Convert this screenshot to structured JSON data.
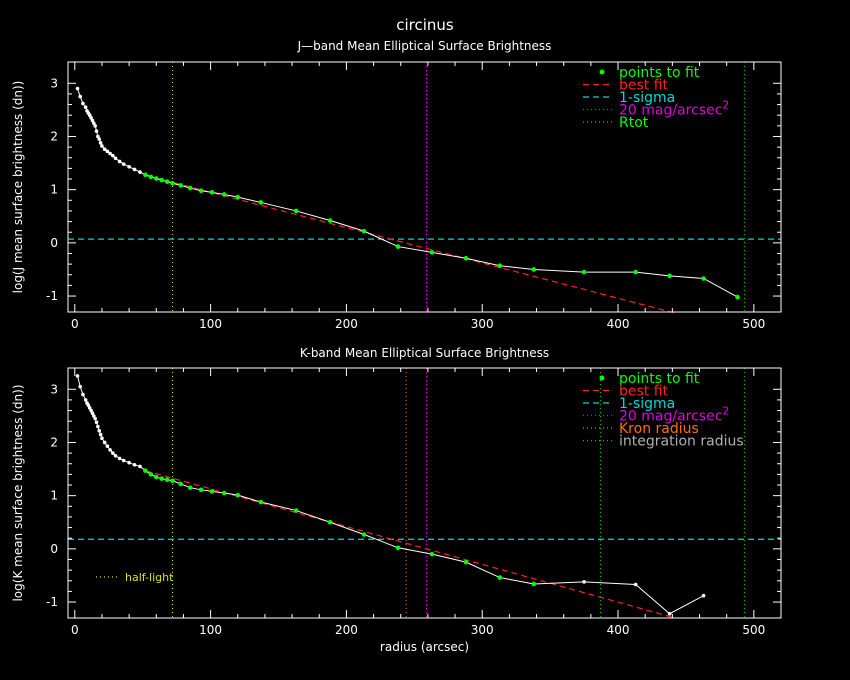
{
  "page": {
    "title": "circinus",
    "background": "#000000"
  },
  "colors": {
    "axes": "#ffffff",
    "points": "#00ff00",
    "profile": "#ffffff",
    "fit": "#ff2020",
    "sigma": "#00d8d8",
    "mag20": "#e000e0",
    "rtot": "#00d000",
    "halflight": "#e0e000",
    "kron": "#ff7000",
    "integration": "#b0b0b0"
  },
  "chart_data": [
    {
      "type": "line",
      "title": "J—band Mean Elliptical Surface Brightness",
      "xlabel": "",
      "ylabel": "log(J mean surface brightness (dn))",
      "xlim": [
        -5,
        520
      ],
      "ylim": [
        -1.3,
        3.4
      ],
      "x_ticks": [
        0,
        100,
        200,
        300,
        400,
        500
      ],
      "y_ticks": [
        -1,
        0,
        1,
        2,
        3
      ],
      "profile": {
        "x": [
          2,
          4,
          6,
          8,
          9,
          10,
          11,
          12,
          13,
          14,
          15,
          16,
          17,
          18,
          19,
          20,
          22,
          24,
          26,
          28,
          30,
          33,
          36,
          40,
          44,
          48,
          52,
          56,
          60,
          64,
          68,
          72,
          78,
          85,
          93,
          101,
          110,
          120,
          137,
          163,
          188,
          213,
          238,
          263,
          288,
          313,
          338,
          375,
          413,
          438,
          463,
          488
        ],
        "y": [
          2.9,
          2.75,
          2.62,
          2.55,
          2.48,
          2.44,
          2.4,
          2.35,
          2.3,
          2.25,
          2.2,
          2.1,
          2.0,
          1.95,
          1.88,
          1.82,
          1.76,
          1.72,
          1.68,
          1.64,
          1.59,
          1.53,
          1.48,
          1.43,
          1.38,
          1.33,
          1.28,
          1.24,
          1.21,
          1.18,
          1.15,
          1.12,
          1.08,
          1.03,
          0.98,
          0.95,
          0.91,
          0.86,
          0.76,
          0.6,
          0.42,
          0.22,
          -0.07,
          -0.18,
          -0.29,
          -0.43,
          -0.5,
          -0.55,
          -0.55,
          -0.62,
          -0.67,
          -1.02
        ]
      },
      "fit_points": {
        "x": [
          52,
          56,
          60,
          64,
          68,
          72,
          78,
          85,
          93,
          101,
          110,
          120,
          137,
          163,
          188,
          213,
          238,
          263,
          288,
          313,
          338,
          375,
          413,
          438,
          463,
          488
        ],
        "y": [
          1.28,
          1.24,
          1.21,
          1.18,
          1.15,
          1.12,
          1.08,
          1.03,
          0.98,
          0.95,
          0.91,
          0.86,
          0.76,
          0.6,
          0.42,
          0.22,
          -0.07,
          -0.18,
          -0.29,
          -0.43,
          -0.5,
          -0.55,
          -0.55,
          -0.62,
          -0.67,
          -1.02
        ]
      },
      "best_fit": {
        "x": [
          52,
          442
        ],
        "y": [
          1.27,
          -1.32
        ]
      },
      "sigma_level": 0.07,
      "vlines": [
        {
          "x": 72,
          "color_key": "halflight"
        },
        {
          "x": 259,
          "color_key": "mag20"
        },
        {
          "x": 493,
          "color_key": "rtot"
        }
      ],
      "legend": [
        {
          "label": "points to fit",
          "style": "dot",
          "color_key": "points",
          "label_color_key": "points"
        },
        {
          "label": "best fit",
          "style": "dash",
          "color_key": "fit",
          "label_color_key": "fit"
        },
        {
          "label": "1-sigma",
          "style": "dash",
          "color_key": "sigma",
          "label_color_key": "sigma"
        },
        {
          "label": "20 mag/arcsec",
          "sup": "2",
          "style": "dot-line",
          "color_key": "mag20",
          "label_color_key": "mag20"
        },
        {
          "label": "Rtot",
          "style": "dot-line",
          "color_key": "rtot",
          "label_color_key": "points"
        }
      ],
      "annotation": ""
    },
    {
      "type": "line",
      "title": "K-band Mean Elliptical Surface Brightness",
      "xlabel": "radius (arcsec)",
      "ylabel": "log(K mean surface brightness (dn))",
      "xlim": [
        -5,
        520
      ],
      "ylim": [
        -1.3,
        3.4
      ],
      "x_ticks": [
        0,
        100,
        200,
        300,
        400,
        500
      ],
      "y_ticks": [
        -1,
        0,
        1,
        2,
        3
      ],
      "profile": {
        "x": [
          2,
          4,
          6,
          8,
          9,
          10,
          11,
          12,
          13,
          14,
          15,
          16,
          17,
          18,
          19,
          20,
          22,
          24,
          26,
          28,
          30,
          33,
          36,
          40,
          44,
          48,
          52,
          56,
          60,
          64,
          68,
          72,
          78,
          85,
          93,
          101,
          110,
          120,
          137,
          163,
          188,
          213,
          238,
          263,
          288,
          313,
          338,
          375,
          413,
          438,
          463
        ],
        "y": [
          3.25,
          3.05,
          2.9,
          2.8,
          2.74,
          2.7,
          2.65,
          2.6,
          2.55,
          2.5,
          2.45,
          2.38,
          2.3,
          2.22,
          2.15,
          2.08,
          2.0,
          1.93,
          1.86,
          1.8,
          1.75,
          1.7,
          1.66,
          1.62,
          1.58,
          1.55,
          1.47,
          1.4,
          1.35,
          1.32,
          1.3,
          1.28,
          1.22,
          1.15,
          1.11,
          1.08,
          1.05,
          1.01,
          0.88,
          0.72,
          0.5,
          0.27,
          0.02,
          -0.1,
          -0.25,
          -0.54,
          -0.66,
          -0.62,
          -0.67,
          -1.22,
          -0.88
        ]
      },
      "fit_points": {
        "x": [
          52,
          56,
          60,
          64,
          68,
          72,
          78,
          85,
          93,
          101,
          110,
          120,
          137,
          163,
          188,
          213,
          238,
          263,
          288,
          313,
          338
        ],
        "y": [
          1.47,
          1.4,
          1.35,
          1.32,
          1.3,
          1.28,
          1.22,
          1.15,
          1.11,
          1.08,
          1.05,
          1.01,
          0.88,
          0.72,
          0.5,
          0.27,
          0.02,
          -0.1,
          -0.25,
          -0.54,
          -0.66
        ]
      },
      "best_fit": {
        "x": [
          52,
          442
        ],
        "y": [
          1.47,
          -1.3
        ]
      },
      "sigma_level": 0.18,
      "vlines": [
        {
          "x": 72,
          "color_key": "halflight"
        },
        {
          "x": 244,
          "color_key": "kron"
        },
        {
          "x": 259,
          "color_key": "mag20"
        },
        {
          "x": 387,
          "color_key": "rtot"
        },
        {
          "x": 493,
          "color_key": "rtot"
        }
      ],
      "legend": [
        {
          "label": "points to fit",
          "style": "dot",
          "color_key": "points",
          "label_color_key": "points"
        },
        {
          "label": "best fit",
          "style": "dash",
          "color_key": "fit",
          "label_color_key": "fit"
        },
        {
          "label": "1-sigma",
          "style": "dash",
          "color_key": "sigma",
          "label_color_key": "sigma"
        },
        {
          "label": "20 mag/arcsec",
          "sup": "2",
          "style": "dot-line",
          "color_key": "mag20",
          "label_color_key": "mag20"
        },
        {
          "label": "Kron radius",
          "style": "dot-line",
          "color_key": "kron",
          "label_color_key": "kron"
        },
        {
          "label": "integration radius",
          "style": "dot-line",
          "color_key": "rtot",
          "label_color_key": "integration"
        }
      ],
      "annotation": "half-light"
    }
  ]
}
